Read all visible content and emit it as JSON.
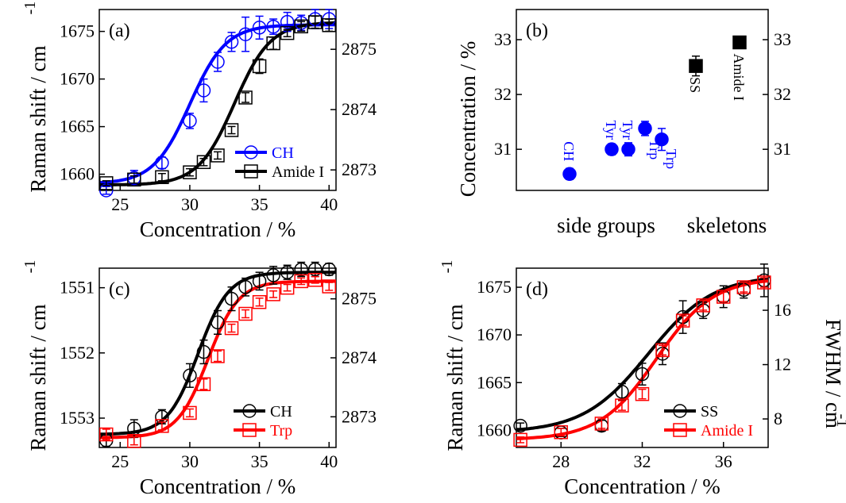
{
  "chart_data": [
    {
      "panel": "(a)",
      "type": "scatter",
      "xlabel": "Concentration / %",
      "ylabel": "Raman shift / cm",
      "ylabel_sup": "-1",
      "xlim": [
        23.5,
        40.5
      ],
      "ylim": [
        1658.3,
        1677.3
      ],
      "y2lim": [
        2872.66,
        2875.66
      ],
      "xticks": [
        "25",
        "30",
        "35",
        "40"
      ],
      "yticks": [
        "1660",
        "1665",
        "1670",
        "1675"
      ],
      "y2ticks": [
        "2873",
        "2874",
        "2875"
      ],
      "legend_position": "lower-right",
      "series": [
        {
          "name": "CH",
          "color": "#0000ff",
          "marker": "circle",
          "x": [
            24,
            26,
            28,
            30,
            31,
            32,
            33,
            34,
            35,
            36,
            37,
            38,
            39,
            40
          ],
          "y": [
            1658.3,
            1659.6,
            1661.2,
            1665.6,
            1668.8,
            1671.8,
            1673.9,
            1674.7,
            1675.4,
            1675.5,
            1676.0,
            1675.9,
            1676.3,
            1676.3
          ],
          "err": [
            0.4,
            0.8,
            0.6,
            0.8,
            1.2,
            1.0,
            1.0,
            1.8,
            1.2,
            0.8,
            1.0,
            0.8,
            1.0,
            1.0
          ]
        },
        {
          "name": "Amide I",
          "color": "#000000",
          "marker": "square",
          "axis": "right",
          "x": [
            24,
            26,
            28,
            30,
            31,
            32,
            33,
            34,
            35,
            36,
            37,
            38,
            39,
            40
          ],
          "y": [
            2872.78,
            2872.84,
            2872.88,
            2872.96,
            2873.13,
            2873.24,
            2873.66,
            2874.2,
            2874.72,
            2875.1,
            2875.27,
            2875.38,
            2875.45,
            2875.4
          ],
          "err": [
            0.04,
            0.06,
            0.06,
            0.06,
            0.06,
            0.06,
            0.06,
            0.08,
            0.12,
            0.1,
            0.06,
            0.08,
            0.1,
            0.1
          ]
        }
      ]
    },
    {
      "panel": "(b)",
      "type": "scatter",
      "ylabel": "Concentration / %",
      "ylim": [
        30.25,
        33.55
      ],
      "yticks": [
        "31",
        "32",
        "33"
      ],
      "y2ticks": [
        "31",
        "32",
        "33"
      ],
      "group_labels": [
        "side groups",
        "skeletons"
      ],
      "points": [
        {
          "label": "CH",
          "value": 30.55,
          "err": 0.1,
          "color": "#0000ff",
          "marker": "filled-circle"
        },
        {
          "label": "Tyr",
          "value": 31.0,
          "err": 0.1,
          "color": "#0000ff",
          "marker": "filled-circle"
        },
        {
          "label": "Tyr",
          "value": 31.0,
          "err": 0.12,
          "color": "#0000ff",
          "marker": "filled-circle"
        },
        {
          "label": "Trp",
          "value": 31.38,
          "err": 0.13,
          "color": "#0000ff",
          "marker": "filled-circle"
        },
        {
          "label": "Trp",
          "value": 31.18,
          "err": 0.2,
          "color": "#0000ff",
          "marker": "filled-circle"
        },
        {
          "label": "SS",
          "value": 32.52,
          "err": 0.18,
          "color": "#000000",
          "marker": "filled-square"
        },
        {
          "label": "Amide I",
          "value": 32.95,
          "err": 0.06,
          "color": "#000000",
          "marker": "filled-square"
        }
      ]
    },
    {
      "panel": "(c)",
      "type": "scatter",
      "xlabel": "Concentration / %",
      "ylabel": "Raman shift / cm",
      "ylabel_sup": "-1",
      "xlim": [
        23.5,
        40.5
      ],
      "ylim": [
        1553.45,
        1550.7
      ],
      "y2lim": [
        2872.48,
        2875.52
      ],
      "xticks": [
        "25",
        "30",
        "35",
        "40"
      ],
      "yticks": [
        "1551",
        "1552",
        "1553"
      ],
      "y2ticks": [
        "2873",
        "2874",
        "2875"
      ],
      "legend_position": "lower-right",
      "series": [
        {
          "name": "CH",
          "color": "#000000",
          "marker": "circle",
          "axis": "right",
          "x": [
            24,
            26,
            28,
            30,
            31,
            32,
            33,
            34,
            35,
            36,
            37,
            38,
            39,
            40
          ],
          "y": [
            2872.6,
            2872.8,
            2873.0,
            2873.7,
            2874.1,
            2874.6,
            2875.0,
            2875.2,
            2875.3,
            2875.4,
            2875.45,
            2875.5,
            2875.5,
            2875.5
          ],
          "err": [
            0.1,
            0.15,
            0.12,
            0.2,
            0.2,
            0.2,
            0.2,
            0.15,
            0.15,
            0.15,
            0.12,
            0.12,
            0.12,
            0.1
          ]
        },
        {
          "name": "Trp",
          "color": "#ff0000",
          "marker": "square",
          "x": [
            24,
            26,
            28,
            30,
            31,
            32,
            33,
            34,
            35,
            36,
            37,
            38,
            39,
            40
          ],
          "y": [
            1553.25,
            1553.35,
            1553.12,
            1552.92,
            1552.48,
            1552.05,
            1551.62,
            1551.4,
            1551.22,
            1551.1,
            1551.0,
            1550.9,
            1550.88,
            1550.98
          ],
          "err": [
            0.08,
            0.06,
            0.06,
            0.06,
            0.08,
            0.08,
            0.06,
            0.06,
            0.06,
            0.05,
            0.05,
            0.05,
            0.05,
            0.06
          ]
        }
      ]
    },
    {
      "panel": "(d)",
      "type": "scatter",
      "xlabel": "Concentration / %",
      "ylabel": "Raman shift / cm",
      "ylabel_sup": "-1",
      "y2label": "FWHM / cm",
      "y2label_sup": "-1",
      "xlim": [
        25.8,
        38.2
      ],
      "ylim": [
        1658.2,
        1677.0
      ],
      "y2lim": [
        5.9,
        19.1
      ],
      "xticks": [
        "28",
        "32",
        "36"
      ],
      "yticks": [
        "1660",
        "1665",
        "1670",
        "1675"
      ],
      "y2ticks": [
        "8",
        "12",
        "16"
      ],
      "legend_position": "lower-right",
      "series": [
        {
          "name": "SS",
          "color": "#000000",
          "marker": "circle",
          "axis": "right",
          "x": [
            26,
            28,
            30,
            31,
            32,
            33,
            34,
            35,
            36,
            37,
            38
          ],
          "y": [
            7.5,
            7.0,
            7.5,
            10.0,
            11.3,
            12.8,
            15.5,
            16.0,
            17.0,
            17.5,
            18.2
          ],
          "err": [
            0.2,
            0.3,
            0.4,
            0.6,
            0.8,
            0.8,
            1.2,
            0.6,
            0.8,
            0.6,
            1.2
          ]
        },
        {
          "name": "Amide I",
          "color": "#ff0000",
          "marker": "square",
          "x": [
            26,
            28,
            30,
            31,
            32,
            33,
            34,
            35,
            36,
            37,
            38
          ],
          "y": [
            1659.0,
            1659.8,
            1660.7,
            1662.6,
            1663.8,
            1668.4,
            1671.5,
            1673.1,
            1674.0,
            1675.0,
            1675.5
          ],
          "err": [
            0.3,
            0.4,
            0.5,
            0.5,
            0.5,
            0.5,
            0.5,
            0.5,
            0.5,
            0.5,
            0.5
          ]
        }
      ]
    }
  ]
}
